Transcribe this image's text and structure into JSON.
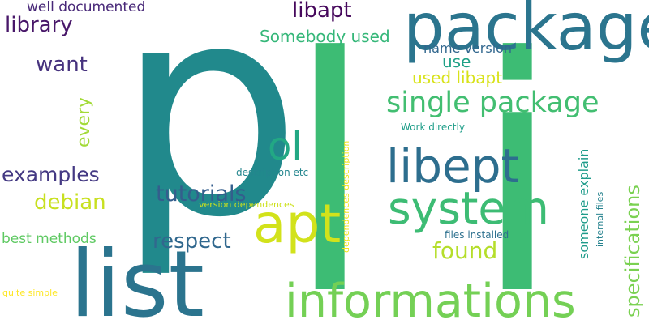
{
  "words": [
    {
      "text": "p",
      "color": "#21898c"
    },
    {
      "text": "l",
      "color": "#3dbc74"
    },
    {
      "text": "i",
      "color": "#3dbc74"
    },
    {
      "text": "package",
      "color": "#2b758e"
    },
    {
      "text": "list",
      "color": "#2b748e"
    },
    {
      "text": "informations",
      "color": "#74d055"
    },
    {
      "text": "apt",
      "color": "#d2e21b"
    },
    {
      "text": "system",
      "color": "#3dbc74"
    },
    {
      "text": "libept",
      "color": "#2d6e8e"
    },
    {
      "text": "ol",
      "color": "#22a884"
    },
    {
      "text": "single package",
      "color": "#42be71"
    },
    {
      "text": "tutorials",
      "color": "#345e8d"
    },
    {
      "text": "respect",
      "color": "#31688e"
    },
    {
      "text": "found",
      "color": "#b5de2b"
    },
    {
      "text": "examples",
      "color": "#443983"
    },
    {
      "text": "debian",
      "color": "#c8e020"
    },
    {
      "text": "best methods",
      "color": "#5ec962"
    },
    {
      "text": "want",
      "color": "#46327e"
    },
    {
      "text": "library",
      "color": "#481769"
    },
    {
      "text": "libapt",
      "color": "#46085c"
    },
    {
      "text": "well documented",
      "color": "#482878"
    },
    {
      "text": "Somebody used",
      "color": "#35b779"
    },
    {
      "text": "name version",
      "color": "#31678e"
    },
    {
      "text": "use",
      "color": "#1fa187"
    },
    {
      "text": "used libapt",
      "color": "#d8e219"
    },
    {
      "text": "every",
      "color": "#a2da37"
    },
    {
      "text": "Work directly",
      "color": "#1f9e89"
    },
    {
      "text": "someone explain",
      "color": "#1e9b8a"
    },
    {
      "text": "specifications",
      "color": "#7ad151"
    },
    {
      "text": "internal files",
      "color": "#26828e"
    },
    {
      "text": "files installed",
      "color": "#2d708e"
    },
    {
      "text": "description etc",
      "color": "#24868e"
    },
    {
      "text": "version dependences",
      "color": "#cde11d"
    },
    {
      "text": "dependences description",
      "color": "#f1e51d"
    },
    {
      "text": "quite simple",
      "color": "#fde725"
    }
  ]
}
